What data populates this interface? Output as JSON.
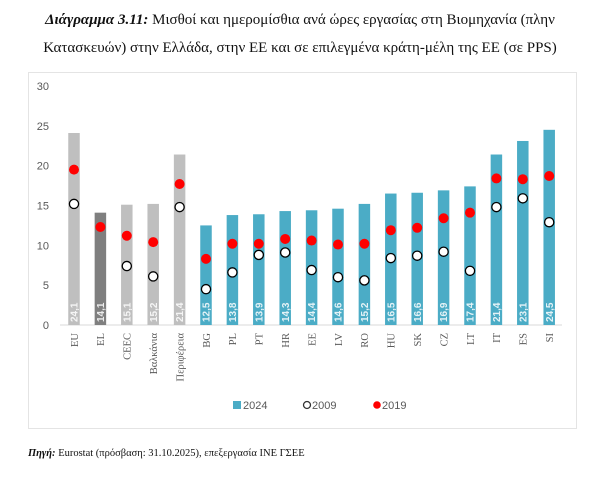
{
  "title": {
    "bold": "Διάγραμμα 3.11:",
    "line1": " Μισθοί και ημερομίσθια ανά ώρες εργασίας στη Βιομηχανία (πλην",
    "line2": "Κατασκευών) στην Ελλάδα, στην ΕΕ και σε επιλεγμένα κράτη-μέλη της ΕΕ (σε PPS)"
  },
  "source": {
    "bold": "Πηγή:",
    "text": " Eurostat (πρόσβαση: 31.10.2025), επεξεργασία ΙΝΕ ΓΣΕΕ"
  },
  "colors": {
    "bar_2024": "#4bacc6",
    "bar_aggregate": "#bfbfbf",
    "bar_greece": "#7f7f7f",
    "dot_2019": "#ff0000",
    "dot_2009_fill": "#ffffff",
    "dot_2009_stroke": "#000000"
  },
  "chart_data": {
    "type": "bar",
    "title": "Μισθοί και ημερομίσθια ανά ώρες εργασίας στη Βιομηχανία (πλην Κατασκευών) (σε PPS)",
    "xlabel": "",
    "ylabel": "",
    "ylim": [
      0,
      30
    ],
    "yticks": [
      0,
      5,
      10,
      15,
      20,
      25,
      30
    ],
    "grid": false,
    "legend_position": "bottom",
    "categories": [
      "EU",
      "EL",
      "CEEC",
      "Βαλκάνια",
      "Περιφέρεια",
      "BG",
      "PL",
      "PT",
      "HR",
      "EE",
      "LV",
      "RO",
      "HU",
      "SK",
      "CZ",
      "LT",
      "IT",
      "ES",
      "SI"
    ],
    "bar_value_labels": [
      "24,1",
      "14,1",
      "15,1",
      "15,2",
      "21,4",
      "12,5",
      "13,8",
      "13,9",
      "14,3",
      "14,4",
      "14,6",
      "15,2",
      "16,5",
      "16,6",
      "16,9",
      "17,4",
      "21,4",
      "23,1",
      "24,5"
    ],
    "bar_styles": [
      "aggregate",
      "greece",
      "aggregate",
      "aggregate",
      "aggregate",
      "country",
      "country",
      "country",
      "country",
      "country",
      "country",
      "country",
      "country",
      "country",
      "country",
      "country",
      "country",
      "country",
      "country"
    ],
    "series": [
      {
        "name": "2024",
        "type": "bar",
        "values": [
          24.1,
          14.1,
          15.1,
          15.2,
          21.4,
          12.5,
          13.8,
          13.9,
          14.3,
          14.4,
          14.6,
          15.2,
          16.5,
          16.6,
          16.9,
          17.4,
          21.4,
          23.1,
          24.5
        ]
      },
      {
        "name": "2009",
        "type": "scatter",
        "marker": "open-circle",
        "values": [
          15.2,
          null,
          7.4,
          6.1,
          14.8,
          4.5,
          6.6,
          8.8,
          9.1,
          6.9,
          6.0,
          5.6,
          8.4,
          8.7,
          9.2,
          6.8,
          14.8,
          15.9,
          12.9
        ]
      },
      {
        "name": "2019",
        "type": "scatter",
        "marker": "filled-circle",
        "values": [
          19.5,
          12.3,
          11.2,
          10.4,
          17.7,
          8.3,
          10.2,
          10.2,
          10.8,
          10.6,
          10.1,
          10.2,
          11.9,
          12.2,
          13.4,
          14.1,
          18.4,
          18.3,
          18.7
        ]
      }
    ],
    "legend": [
      "2024",
      "2009",
      "2019"
    ]
  }
}
